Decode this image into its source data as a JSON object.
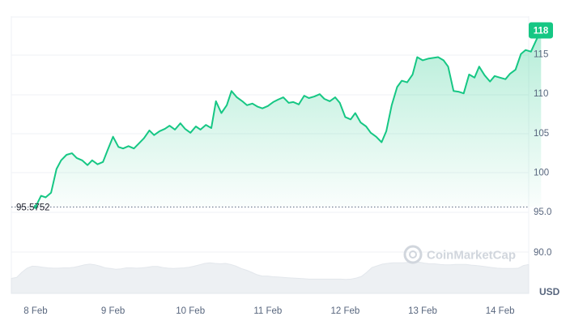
{
  "chart_data": {
    "type": "area",
    "series": [
      {
        "values": [
          [
            0.0,
            95.6
          ],
          [
            0.07,
            97.0
          ],
          [
            0.13,
            96.8
          ],
          [
            0.2,
            97.4
          ],
          [
            0.27,
            100.4
          ],
          [
            0.33,
            101.5
          ],
          [
            0.4,
            102.2
          ],
          [
            0.47,
            102.4
          ],
          [
            0.53,
            101.8
          ],
          [
            0.6,
            101.5
          ],
          [
            0.67,
            100.9
          ],
          [
            0.73,
            101.5
          ],
          [
            0.8,
            101.0
          ],
          [
            0.87,
            101.3
          ],
          [
            0.93,
            102.8
          ],
          [
            1.0,
            104.5
          ],
          [
            1.07,
            103.2
          ],
          [
            1.13,
            103.0
          ],
          [
            1.2,
            103.3
          ],
          [
            1.27,
            103.0
          ],
          [
            1.33,
            103.6
          ],
          [
            1.4,
            104.3
          ],
          [
            1.47,
            105.3
          ],
          [
            1.53,
            104.7
          ],
          [
            1.6,
            105.2
          ],
          [
            1.67,
            105.5
          ],
          [
            1.73,
            105.9
          ],
          [
            1.8,
            105.4
          ],
          [
            1.87,
            106.2
          ],
          [
            1.93,
            105.5
          ],
          [
            2.0,
            105.0
          ],
          [
            2.07,
            105.8
          ],
          [
            2.13,
            105.4
          ],
          [
            2.2,
            106.0
          ],
          [
            2.27,
            105.6
          ],
          [
            2.33,
            109.0
          ],
          [
            2.4,
            107.5
          ],
          [
            2.47,
            108.5
          ],
          [
            2.53,
            110.3
          ],
          [
            2.6,
            109.5
          ],
          [
            2.67,
            109.0
          ],
          [
            2.73,
            108.5
          ],
          [
            2.8,
            108.7
          ],
          [
            2.87,
            108.3
          ],
          [
            2.93,
            108.1
          ],
          [
            3.0,
            108.4
          ],
          [
            3.07,
            108.9
          ],
          [
            3.13,
            109.2
          ],
          [
            3.2,
            109.5
          ],
          [
            3.27,
            108.8
          ],
          [
            3.33,
            108.9
          ],
          [
            3.4,
            108.6
          ],
          [
            3.47,
            109.7
          ],
          [
            3.53,
            109.4
          ],
          [
            3.6,
            109.6
          ],
          [
            3.67,
            109.9
          ],
          [
            3.73,
            109.3
          ],
          [
            3.8,
            109.0
          ],
          [
            3.87,
            109.5
          ],
          [
            3.93,
            108.8
          ],
          [
            4.0,
            107.0
          ],
          [
            4.07,
            106.7
          ],
          [
            4.13,
            107.5
          ],
          [
            4.2,
            106.3
          ],
          [
            4.27,
            105.8
          ],
          [
            4.33,
            105.0
          ],
          [
            4.4,
            104.5
          ],
          [
            4.47,
            103.8
          ],
          [
            4.53,
            105.2
          ],
          [
            4.6,
            108.5
          ],
          [
            4.67,
            110.8
          ],
          [
            4.73,
            111.6
          ],
          [
            4.8,
            111.4
          ],
          [
            4.87,
            112.4
          ],
          [
            4.93,
            114.6
          ],
          [
            5.0,
            114.2
          ],
          [
            5.07,
            114.4
          ],
          [
            5.13,
            114.5
          ],
          [
            5.2,
            114.6
          ],
          [
            5.27,
            114.2
          ],
          [
            5.33,
            113.4
          ],
          [
            5.4,
            110.3
          ],
          [
            5.47,
            110.2
          ],
          [
            5.53,
            110.0
          ],
          [
            5.6,
            112.4
          ],
          [
            5.67,
            112.0
          ],
          [
            5.73,
            113.4
          ],
          [
            5.8,
            112.3
          ],
          [
            5.87,
            111.5
          ],
          [
            5.93,
            112.2
          ],
          [
            6.0,
            112.0
          ],
          [
            6.07,
            111.8
          ],
          [
            6.13,
            112.5
          ],
          [
            6.2,
            113.0
          ],
          [
            6.27,
            115.0
          ],
          [
            6.33,
            115.5
          ],
          [
            6.4,
            115.3
          ],
          [
            6.47,
            116.8
          ],
          [
            6.53,
            118.0
          ]
        ]
      }
    ],
    "volume": [
      0.44,
      0.47,
      0.62,
      0.74,
      0.8,
      0.79,
      0.77,
      0.75,
      0.74,
      0.74,
      0.75,
      0.75,
      0.77,
      0.8,
      0.84,
      0.86,
      0.84,
      0.8,
      0.75,
      0.73,
      0.71,
      0.72,
      0.75,
      0.75,
      0.74,
      0.75,
      0.77,
      0.79,
      0.79,
      0.76,
      0.74,
      0.73,
      0.74,
      0.75,
      0.77,
      0.8,
      0.84,
      0.88,
      0.9,
      0.88,
      0.87,
      0.88,
      0.85,
      0.8,
      0.73,
      0.68,
      0.62,
      0.55,
      0.51,
      0.51,
      0.49,
      0.48,
      0.47,
      0.46,
      0.45,
      0.44,
      0.43,
      0.42,
      0.42,
      0.42,
      0.42,
      0.42,
      0.42,
      0.42,
      0.41,
      0.42,
      0.45,
      0.5,
      0.62,
      0.76,
      0.81,
      0.86,
      0.88,
      0.9,
      0.9,
      0.9,
      0.91,
      0.91,
      0.92,
      0.89,
      0.87,
      0.87,
      0.85,
      0.84,
      0.84,
      0.85,
      0.85,
      0.85,
      0.83,
      0.82,
      0.8,
      0.78,
      0.76,
      0.74,
      0.73,
      0.73,
      0.73,
      0.74,
      0.82,
      0.85
    ],
    "x_ticks": [
      "8 Feb",
      "9 Feb",
      "10 Feb",
      "11 Feb",
      "12 Feb",
      "13 Feb",
      "14 Feb"
    ],
    "y_ticks": [
      95.0,
      100,
      105,
      110,
      115
    ],
    "y_tick_labels": [
      "95.0",
      "100",
      "105",
      "110",
      "115"
    ],
    "volume_y_label": "90.0",
    "ylim": [
      90,
      120
    ],
    "open_value_label": "95.5752",
    "open_value": 95.5752,
    "current_value_label": "118",
    "current_value": 118,
    "currency_label": "USD",
    "grid": true,
    "line_color": "#16c784",
    "open_line_color": "#58667e",
    "watermark": "CoinMarketCap"
  }
}
